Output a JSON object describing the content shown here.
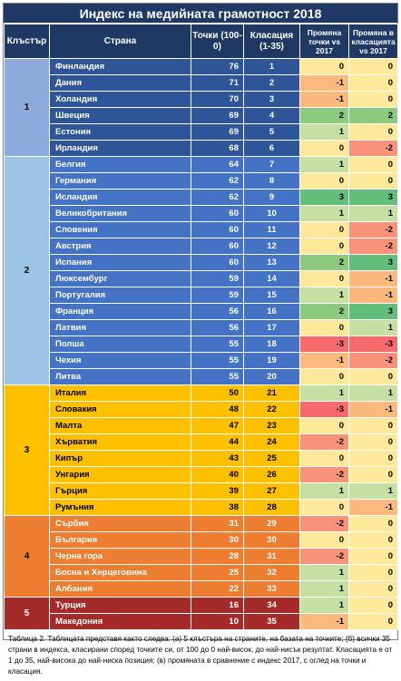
{
  "title": "Индекс на медийната грамотност 2018",
  "headers": {
    "cluster": "Клъстър",
    "country": "Страна",
    "points": "Точки (100-0)",
    "rank": "Класация (1-35)",
    "points_change": "Промяна точки vs 2017",
    "rank_change": "Промяна в класацията vs 2017"
  },
  "clusters": [
    {
      "label": "1",
      "color": "#2e5597",
      "rows": [
        {
          "country": "Финландия",
          "points": "76",
          "rank": "1",
          "dp": "0",
          "dr": "0"
        },
        {
          "country": "Дания",
          "points": "71",
          "rank": "2",
          "dp": "-1",
          "dr": "0"
        },
        {
          "country": "Холандия",
          "points": "70",
          "rank": "3",
          "dp": "-1",
          "dr": "0"
        },
        {
          "country": "Швеция",
          "points": "69",
          "rank": "4",
          "dp": "2",
          "dr": "2"
        },
        {
          "country": "Естония",
          "points": "69",
          "rank": "5",
          "dp": "1",
          "dr": "0"
        },
        {
          "country": "Ирландия",
          "points": "68",
          "rank": "6",
          "dp": "0",
          "dr": "-2"
        }
      ]
    },
    {
      "label": "2",
      "color": "#4472c4",
      "rows": [
        {
          "country": "Белгия",
          "points": "64",
          "rank": "7",
          "dp": "1",
          "dr": "0"
        },
        {
          "country": "Германия",
          "points": "62",
          "rank": "8",
          "dp": "0",
          "dr": "0"
        },
        {
          "country": "Исландия",
          "points": "62",
          "rank": "9",
          "dp": "3",
          "dr": "3"
        },
        {
          "country": "Великобритания",
          "points": "60",
          "rank": "10",
          "dp": "1",
          "dr": "1"
        },
        {
          "country": "Словения",
          "points": "60",
          "rank": "11",
          "dp": "0",
          "dr": "-2"
        },
        {
          "country": "Австрия",
          "points": "60",
          "rank": "12",
          "dp": "0",
          "dr": "-2"
        },
        {
          "country": "Испания",
          "points": "60",
          "rank": "13",
          "dp": "2",
          "dr": "3"
        },
        {
          "country": "Люксембург",
          "points": "59",
          "rank": "14",
          "dp": "0",
          "dr": "-1"
        },
        {
          "country": "Португалия",
          "points": "59",
          "rank": "15",
          "dp": "1",
          "dr": "-1"
        },
        {
          "country": "Франция",
          "points": "56",
          "rank": "16",
          "dp": "2",
          "dr": "3"
        },
        {
          "country": "Латвия",
          "points": "56",
          "rank": "17",
          "dp": "0",
          "dr": "1"
        },
        {
          "country": "Полша",
          "points": "55",
          "rank": "18",
          "dp": "-3",
          "dr": "-3"
        },
        {
          "country": "Чехия",
          "points": "55",
          "rank": "19",
          "dp": "-1",
          "dr": "-2"
        },
        {
          "country": "Литва",
          "points": "55",
          "rank": "20",
          "dp": "0",
          "dr": "0"
        }
      ]
    },
    {
      "label": "3",
      "color": "#ffc000",
      "rows": [
        {
          "country": "Италия",
          "points": "50",
          "rank": "21",
          "dp": "1",
          "dr": "1"
        },
        {
          "country": "Словакия",
          "points": "48",
          "rank": "22",
          "dp": "-3",
          "dr": "-1"
        },
        {
          "country": "Малта",
          "points": "47",
          "rank": "23",
          "dp": "0",
          "dr": "0"
        },
        {
          "country": "Хърватия",
          "points": "44",
          "rank": "24",
          "dp": "-2",
          "dr": "0"
        },
        {
          "country": "Кипър",
          "points": "43",
          "rank": "25",
          "dp": "0",
          "dr": "0"
        },
        {
          "country": "Унгария",
          "points": "40",
          "rank": "26",
          "dp": "-2",
          "dr": "0"
        },
        {
          "country": "Гърция",
          "points": "39",
          "rank": "27",
          "dp": "1",
          "dr": "1"
        },
        {
          "country": "Румъния",
          "points": "38",
          "rank": "28",
          "dp": "0",
          "dr": "-1"
        }
      ]
    },
    {
      "label": "4",
      "color": "#ed7d31",
      "rows": [
        {
          "country": "Сърбия",
          "points": "31",
          "rank": "29",
          "dp": "-2",
          "dr": "0"
        },
        {
          "country": "България",
          "points": "30",
          "rank": "30",
          "dp": "0",
          "dr": "0"
        },
        {
          "country": "Черна гора",
          "points": "28",
          "rank": "31",
          "dp": "-2",
          "dr": "0"
        },
        {
          "country": "Босна и Херцеговина",
          "points": "25",
          "rank": "32",
          "dp": "1",
          "dr": "0"
        },
        {
          "country": "Албания",
          "points": "22",
          "rank": "33",
          "dp": "1",
          "dr": "0"
        }
      ]
    },
    {
      "label": "5",
      "color": "#a52a2a",
      "rows": [
        {
          "country": "Турция",
          "points": "16",
          "rank": "34",
          "dp": "1",
          "dr": "0"
        },
        {
          "country": "Македония",
          "points": "10",
          "rank": "35",
          "dp": "-1",
          "dr": "0"
        }
      ]
    }
  ],
  "note": "Таблица 2. Таблицата представя както следва: (а) 5 клъстъра на страните, на базата на точките; (б) всички 35 страни в индекса, класирани според точките си, от 100 до 0 най-висок, до най-нисък резултат. Класацията е от 1 до 35, най-висока до най-ниска позиция; (в) промяната в сравнение с индекс 2017, с оглед на точки и класация."
}
